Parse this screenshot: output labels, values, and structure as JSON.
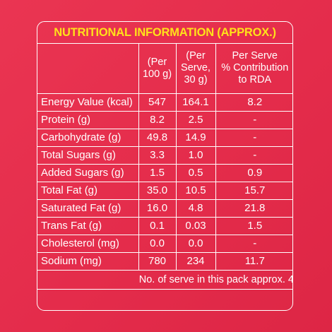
{
  "title": "NUTRITIONAL INFORMATION (APPROX.)",
  "headers": [
    {
      "lines": [
        ""
      ]
    },
    {
      "lines": [
        "(Per",
        "100 g)"
      ]
    },
    {
      "lines": [
        "(Per",
        "Serve,",
        "30 g)"
      ]
    },
    {
      "lines": [
        "Per Serve",
        "% Contribution",
        "to RDA"
      ]
    }
  ],
  "rows": [
    {
      "name": "Energy Value (kcal)",
      "per100g": "547",
      "perServe": "164.1",
      "rda": "8.2"
    },
    {
      "name": "Protein (g)",
      "per100g": "8.2",
      "perServe": "2.5",
      "rda": "-"
    },
    {
      "name": "Carbohydrate (g)",
      "per100g": "49.8",
      "perServe": "14.9",
      "rda": "-"
    },
    {
      "name": "Total Sugars (g)",
      "per100g": "3.3",
      "perServe": "1.0",
      "rda": "-"
    },
    {
      "name": "Added Sugars (g)",
      "per100g": "1.5",
      "perServe": "0.5",
      "rda": "0.9"
    },
    {
      "name": "Total Fat (g)",
      "per100g": "35.0",
      "perServe": "10.5",
      "rda": "15.7"
    },
    {
      "name": "Saturated Fat (g)",
      "per100g": "16.0",
      "perServe": "4.8",
      "rda": "21.8"
    },
    {
      "name": "Trans Fat (g)",
      "per100g": "0.1",
      "perServe": "0.03",
      "rda": "1.5"
    },
    {
      "name": "Cholesterol (mg)",
      "per100g": "0.0",
      "perServe": "0.0",
      "rda": "-"
    },
    {
      "name": "Sodium (mg)",
      "per100g": "780",
      "perServe": "234",
      "rda": "11.7"
    }
  ],
  "footer": "No. of serve in this pack approx. 4",
  "colors": {
    "background": "#e42c4b",
    "title": "#ffe21a",
    "text": "#ffffff",
    "border": "#ffffff"
  }
}
